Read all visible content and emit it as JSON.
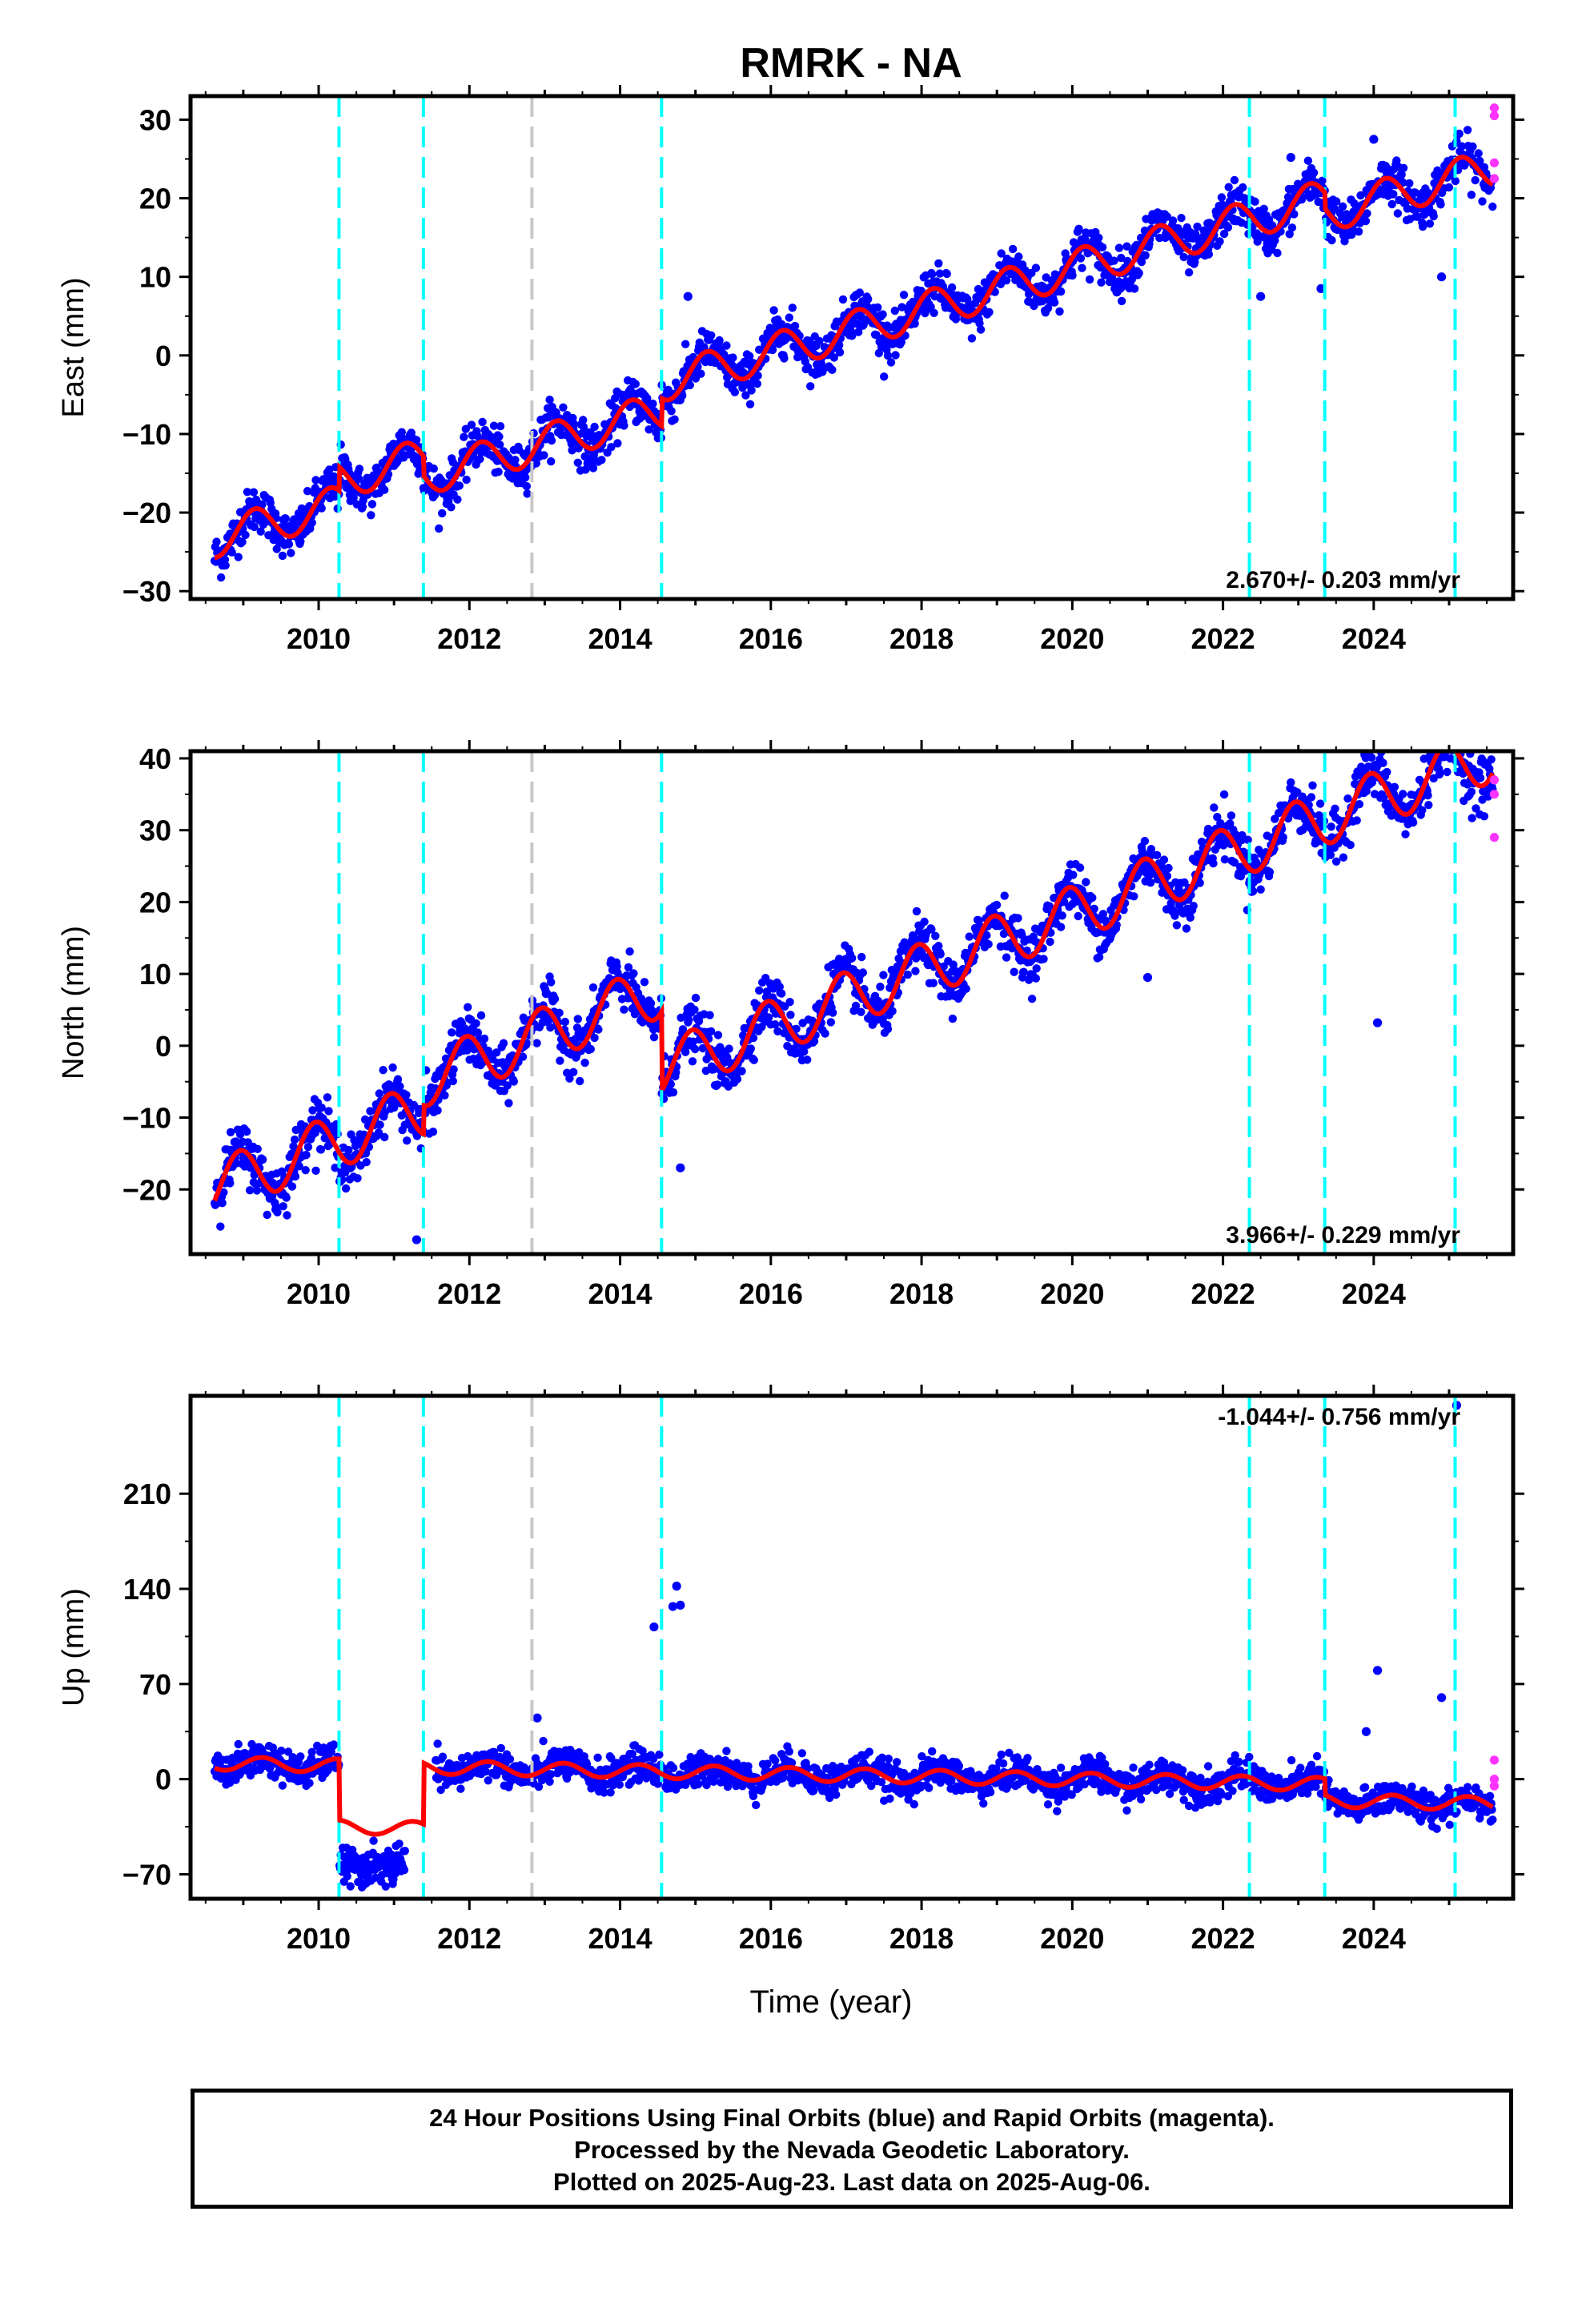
{
  "title": "RMRK - NA",
  "colors": {
    "final_orbits": "#0000ff",
    "rapid_orbits": "#ff33ff",
    "model_fit": "#ff0000",
    "equipment_change": "#00ffff",
    "other_event": "#c8c8c8"
  },
  "chart_data": [
    {
      "type": "scatter",
      "name": "east",
      "ylabel": "East (mm)",
      "xlabel": "",
      "xlim": [
        2008.3,
        2025.85
      ],
      "ylim": [
        -31,
        33
      ],
      "yticks": [
        -30,
        -20,
        -10,
        0,
        10,
        20,
        30
      ],
      "xticks": [
        2010,
        2012,
        2014,
        2016,
        2018,
        2020,
        2022,
        2024
      ],
      "rate_label": "2.670+/- 0.203 mm/yr",
      "rate": 2.67,
      "fit_offset": -24.2,
      "seasonal_amp": 2.4,
      "seasonal_phase": 0.1,
      "noise": 1.4,
      "jumps": [
        {
          "t": 2010.27,
          "dy": 3.0
        },
        {
          "t": 2011.39,
          "dy": -2.5
        },
        {
          "t": 2014.55,
          "dy": 3.5
        },
        {
          "t": 2023.35,
          "dy": -2.0
        }
      ],
      "outliers": [
        {
          "t": 2014.9,
          "y": 7.5
        },
        {
          "t": 2022.5,
          "y": 7.5
        },
        {
          "t": 2022.9,
          "y": 25.2
        },
        {
          "t": 2023.3,
          "y": 8.5
        },
        {
          "t": 2024.0,
          "y": 27.5
        },
        {
          "t": 2024.9,
          "y": 10
        }
      ],
      "rapid": [
        {
          "t": 2025.6,
          "y": 31.5
        },
        {
          "t": 2025.6,
          "y": 30.5
        },
        {
          "t": 2025.6,
          "y": 24.5
        },
        {
          "t": 2025.6,
          "y": 22.5
        }
      ]
    },
    {
      "type": "scatter",
      "name": "north",
      "ylabel": "North (mm)",
      "xlabel": "",
      "xlim": [
        2008.3,
        2025.85
      ],
      "ylim": [
        -29,
        41
      ],
      "yticks": [
        -20,
        -10,
        0,
        10,
        20,
        30,
        40
      ],
      "xticks": [
        2010,
        2012,
        2014,
        2016,
        2018,
        2020,
        2022,
        2024
      ],
      "rate_label": "3.966+/- 0.229 mm/yr",
      "rate": 3.966,
      "fit_offset": -21.0,
      "seasonal_amp": 3.8,
      "seasonal_phase": 0.3,
      "noise": 1.8,
      "jumps": [
        {
          "t": 2010.27,
          "dy": 0.0
        },
        {
          "t": 2011.39,
          "dy": 4.0
        },
        {
          "t": 2014.55,
          "dy": -11.0
        },
        {
          "t": 2022.35,
          "dy": 0.0
        }
      ],
      "outliers": [
        {
          "t": 2021.0,
          "y": 9.5
        },
        {
          "t": 2024.05,
          "y": 3.2
        },
        {
          "t": 2011.3,
          "y": -27
        },
        {
          "t": 2014.8,
          "y": -17
        }
      ],
      "rapid": [
        {
          "t": 2025.6,
          "y": 37
        },
        {
          "t": 2025.6,
          "y": 35
        },
        {
          "t": 2025.6,
          "y": 29
        }
      ]
    },
    {
      "type": "scatter",
      "name": "up",
      "ylabel": "Up (mm)",
      "xlabel": "Time (year)",
      "xlim": [
        2008.3,
        2025.85
      ],
      "ylim": [
        -88,
        282
      ],
      "yticks": [
        -70,
        0,
        70,
        140,
        210
      ],
      "xticks": [
        2010,
        2012,
        2014,
        2016,
        2018,
        2020,
        2022,
        2024
      ],
      "rate_label": "-1.044+/- 0.756 mm/yr",
      "rate": -1.044,
      "fit_offset": 12,
      "seasonal_amp": 5,
      "seasonal_phase": 0.0,
      "noise": 6,
      "jumps": [
        {
          "t": 2010.27,
          "dy": -45
        },
        {
          "t": 2011.39,
          "dy": 45
        },
        {
          "t": 2023.35,
          "dy": -12
        }
      ],
      "outliers": [
        {
          "t": 2014.45,
          "y": 112
        },
        {
          "t": 2014.7,
          "y": 127
        },
        {
          "t": 2014.75,
          "y": 142
        },
        {
          "t": 2014.8,
          "y": 128
        },
        {
          "t": 2012.9,
          "y": 45
        },
        {
          "t": 2023.9,
          "y": 35
        },
        {
          "t": 2024.05,
          "y": 80
        },
        {
          "t": 2024.9,
          "y": 60
        },
        {
          "t": 2025.1,
          "y": 275
        }
      ],
      "rapid": [
        {
          "t": 2025.6,
          "y": 14
        },
        {
          "t": 2025.6,
          "y": 0
        },
        {
          "t": 2025.6,
          "y": -5
        }
      ]
    }
  ],
  "events": [
    {
      "t": 2010.27,
      "kind": "equipment_change"
    },
    {
      "t": 2011.39,
      "kind": "equipment_change"
    },
    {
      "t": 2012.83,
      "kind": "other_event"
    },
    {
      "t": 2014.55,
      "kind": "equipment_change"
    },
    {
      "t": 2022.35,
      "kind": "equipment_change"
    },
    {
      "t": 2023.35,
      "kind": "equipment_change"
    },
    {
      "t": 2025.08,
      "kind": "equipment_change"
    }
  ],
  "footer": {
    "line1": "24 Hour Positions Using Final Orbits (blue) and Rapid Orbits (magenta).",
    "line2": "Processed by the Nevada Geodetic Laboratory.",
    "line3": "Plotted on 2025-Aug-23. Last data on 2025-Aug-06."
  }
}
